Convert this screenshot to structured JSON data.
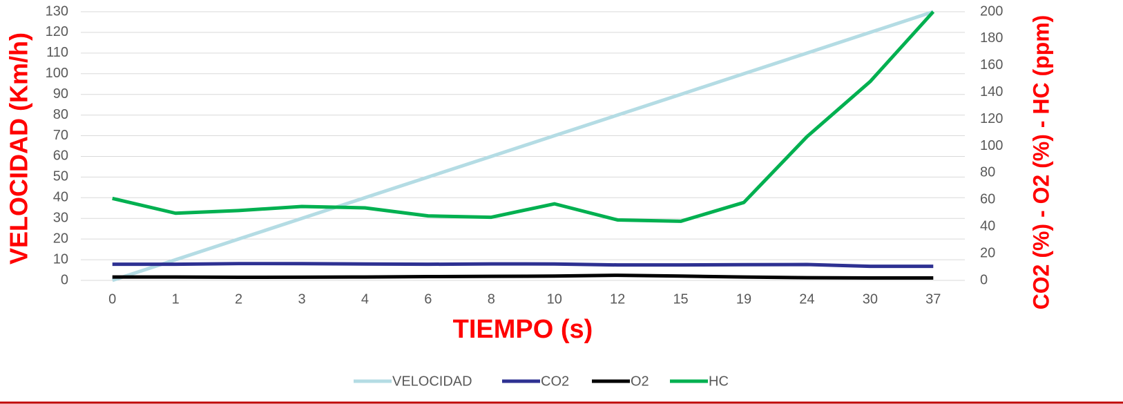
{
  "chart_data": {
    "type": "line",
    "x_label": "TIEMPO (s)",
    "y_label": "VELOCIDAD (Km/h)",
    "y2_label": "CO2 (%) - O2 (%) - HC (ppm)",
    "categories": [
      "0",
      "1",
      "2",
      "3",
      "4",
      "6",
      "8",
      "10",
      "12",
      "15",
      "19",
      "24",
      "30",
      "37"
    ],
    "series": [
      {
        "name": "VELOCIDAD",
        "color": "#b4dce4",
        "values": [
          0,
          10,
          20,
          30,
          40,
          50,
          60,
          70,
          80,
          90,
          100,
          110,
          120,
          130
        ]
      },
      {
        "name": "CO2",
        "color": "#2e3192",
        "axis": "y2",
        "values": [
          12,
          12,
          12.5,
          12.5,
          12.2,
          12,
          12.3,
          12.2,
          11.5,
          11.5,
          11.7,
          11.8,
          10.5,
          10.5
        ]
      },
      {
        "name": "O2",
        "color": "#000000",
        "axis": "y2",
        "values": [
          2.5,
          2.5,
          2.3,
          2.4,
          2.5,
          2.8,
          3,
          3.2,
          3.8,
          3.2,
          2.5,
          2,
          1.8,
          1.8
        ]
      },
      {
        "name": "HC",
        "color": "#00b050",
        "axis": "y2",
        "values": [
          61,
          50,
          52,
          55,
          54,
          48,
          47,
          57,
          45,
          44,
          58,
          107,
          148,
          200
        ]
      }
    ],
    "ylim": [
      0,
      130
    ],
    "yticks": [
      0,
      10,
      20,
      30,
      40,
      50,
      60,
      70,
      80,
      90,
      100,
      110,
      120,
      130
    ],
    "y2lim": [
      0,
      200
    ],
    "y2ticks": [
      0,
      20,
      40,
      60,
      80,
      100,
      120,
      140,
      160,
      180,
      200
    ],
    "grid": true,
    "legend": "bottom"
  }
}
